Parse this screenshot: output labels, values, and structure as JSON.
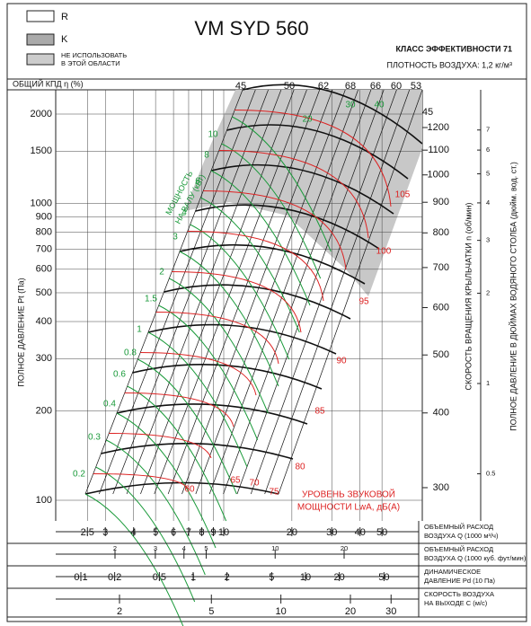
{
  "legend": {
    "items": [
      "R",
      "K"
    ],
    "note": [
      "НЕ ИСПОЛЬЗОВАТЬ",
      "В ЭТОЙ ОБЛАСТИ"
    ]
  },
  "title": "VM SYD 560",
  "efficiency_class": "КЛАСС ЭФФЕКТИВНОСТИ 71",
  "air_density": "ПЛОТНОСТЬ ВОЗДУХА: 1,2 кг/м³",
  "efficiency_label": "ОБЩИЙ КПД η (%)",
  "efficiency_values": [
    45,
    50,
    62,
    68,
    66,
    60,
    53,
    45
  ],
  "pressure_axis": {
    "label": "ПОЛНОЕ ДАВЛЕНИЕ Pt (Па)",
    "lim": [
      100,
      2000
    ],
    "ticks": [
      100,
      200,
      300,
      400,
      500,
      600,
      700,
      800,
      900,
      1000,
      1500,
      2000
    ]
  },
  "speed_axis": {
    "label": "СКОРОСТЬ ВРАЩЕНИЯ КРЫЛЬЧАТКИ n (об/мин)",
    "ticks": [
      300,
      400,
      500,
      600,
      700,
      800,
      900,
      1000,
      1100,
      1200
    ]
  },
  "inch_axis": {
    "label": "ПОЛНОЕ ДАВЛЕНИЕ В ДЮЙМАХ ВОДЯНОГО СТОЛБА (дюйм. вод. ст.)",
    "ticks": [
      0.5,
      1,
      2,
      3,
      4,
      5,
      6,
      7
    ]
  },
  "power": {
    "label": [
      "МОЩНОСТЬ",
      "НА ВАЛУ (кВт)"
    ],
    "values": [
      0.2,
      0.3,
      0.4,
      0.6,
      0.8,
      1,
      1.5,
      2,
      3,
      4,
      6,
      8,
      10,
      20,
      30,
      40
    ]
  },
  "noise": {
    "label": [
      "УРОВЕНЬ ЗВУКОВОЙ",
      "МОЩНОСТИ LwA, дБ(A)"
    ],
    "values": [
      60,
      65,
      70,
      75,
      80,
      85,
      90,
      95,
      100,
      105
    ]
  },
  "rows": [
    {
      "label": [
        "ОБЪЕМНЫЙ РАСХОД",
        "ВОЗДУХА Q (1000 м³/ч)"
      ],
      "ticks": [
        2.5,
        3,
        4,
        5,
        6,
        7,
        8,
        9,
        10,
        20,
        30,
        40,
        50
      ]
    },
    {
      "label": [
        "ОБЪЕМНЫЙ РАСХОД",
        "ВОЗДУХА Q (1000 куб. фут/мин)"
      ],
      "ticks": [
        2,
        3,
        4,
        5,
        10,
        20
      ]
    },
    {
      "label": [
        "ДИНАМИЧЕСКОЕ",
        "ДАВЛЕНИЕ Pd (10 Па)"
      ],
      "ticks": [
        0.1,
        0.2,
        0.5,
        1,
        2,
        5,
        10,
        20,
        50
      ]
    },
    {
      "label": [
        "СКОРОСТЬ ВОЗДУХА",
        "НА ВЫХОДЕ C (м/с)"
      ],
      "ticks": [
        2,
        5,
        10,
        20,
        30
      ]
    }
  ]
}
